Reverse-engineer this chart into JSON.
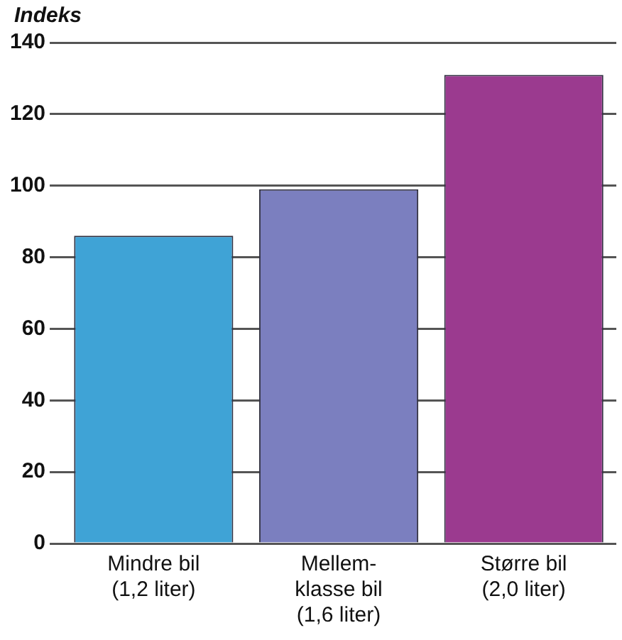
{
  "chart_data": {
    "type": "bar",
    "ylabel": "Indeks",
    "categories": [
      "Mindre bil\n(1,2 liter)",
      "Mellem-\nklasse bil\n(1,6 liter)",
      "Større bil\n(2,0 liter)"
    ],
    "values": [
      86,
      99,
      131
    ],
    "colors": [
      "#3fa3d6",
      "#7b7fbf",
      "#9b3a8f"
    ],
    "ylim": [
      0,
      140
    ],
    "yticks": [
      0,
      20,
      40,
      60,
      80,
      100,
      120,
      140
    ],
    "grid": "y",
    "legend": false
  }
}
